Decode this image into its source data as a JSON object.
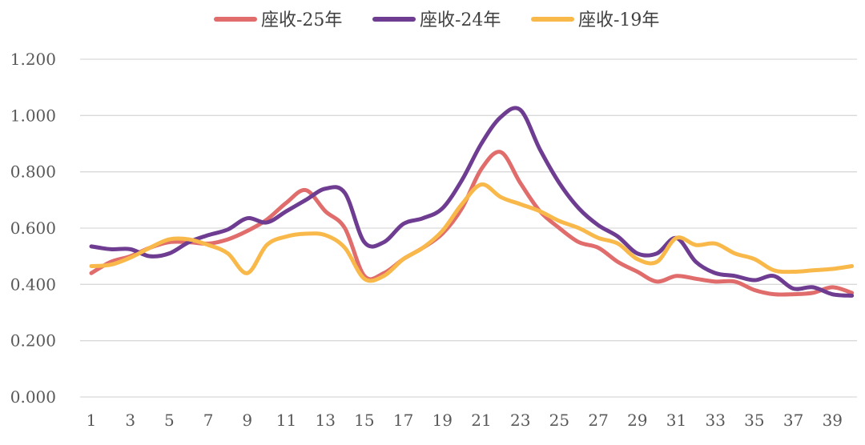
{
  "chart_data": {
    "type": "line",
    "title": "",
    "xlabel": "",
    "ylabel": "",
    "x": [
      1,
      2,
      3,
      4,
      5,
      6,
      7,
      8,
      9,
      10,
      11,
      12,
      13,
      14,
      15,
      16,
      17,
      18,
      19,
      20,
      21,
      22,
      23,
      24,
      25,
      26,
      27,
      28,
      29,
      30,
      31,
      32,
      33,
      34,
      35,
      36,
      37,
      38,
      39,
      40
    ],
    "x_tick_labels": [
      "1",
      "3",
      "5",
      "7",
      "9",
      "11",
      "13",
      "15",
      "17",
      "19",
      "21",
      "23",
      "25",
      "27",
      "29",
      "31",
      "33",
      "35",
      "37",
      "39"
    ],
    "y_tick_labels": [
      "0.000",
      "0.200",
      "0.400",
      "0.600",
      "0.800",
      "1.000",
      "1.200"
    ],
    "ylim": [
      0,
      1.2
    ],
    "grid": "horizontal",
    "legend_position": "top-center",
    "smooth": true,
    "series": [
      {
        "name": "座收-25年",
        "color": "#E06C6C",
        "values": [
          0.44,
          0.48,
          0.5,
          0.53,
          0.55,
          0.55,
          0.545,
          0.56,
          0.59,
          0.63,
          0.69,
          0.735,
          0.66,
          0.6,
          0.43,
          0.44,
          0.49,
          0.53,
          0.58,
          0.67,
          0.81,
          0.87,
          0.76,
          0.66,
          0.6,
          0.55,
          0.53,
          0.48,
          0.445,
          0.41,
          0.43,
          0.42,
          0.41,
          0.41,
          0.38,
          0.365,
          0.365,
          0.37,
          0.39,
          0.37
        ]
      },
      {
        "name": "座收-24年",
        "color": "#6E3C91",
        "values": [
          0.535,
          0.525,
          0.525,
          0.5,
          0.51,
          0.55,
          0.575,
          0.595,
          0.635,
          0.62,
          0.66,
          0.7,
          0.74,
          0.725,
          0.55,
          0.55,
          0.615,
          0.635,
          0.67,
          0.77,
          0.9,
          0.995,
          1.02,
          0.88,
          0.76,
          0.67,
          0.61,
          0.57,
          0.51,
          0.51,
          0.565,
          0.48,
          0.44,
          0.43,
          0.415,
          0.43,
          0.385,
          0.39,
          0.365,
          0.36
        ]
      },
      {
        "name": "座收-19年",
        "color": "#F9B94A",
        "values": [
          0.465,
          0.47,
          0.495,
          0.53,
          0.56,
          0.56,
          0.54,
          0.51,
          0.44,
          0.54,
          0.57,
          0.58,
          0.575,
          0.53,
          0.42,
          0.43,
          0.49,
          0.53,
          0.59,
          0.685,
          0.755,
          0.71,
          0.685,
          0.66,
          0.625,
          0.6,
          0.565,
          0.545,
          0.49,
          0.48,
          0.565,
          0.54,
          0.545,
          0.51,
          0.49,
          0.45,
          0.445,
          0.45,
          0.455,
          0.465
        ]
      }
    ]
  }
}
